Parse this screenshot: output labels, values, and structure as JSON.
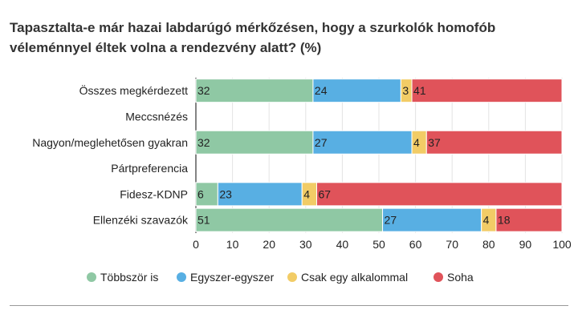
{
  "title": "Tapasztalta-e már hazai labdarúgó mérkőzésen, hogy a szurkolók homofób véleménnyel éltek volna a rendezvény alatt? (%)",
  "chart_data": {
    "type": "bar",
    "orientation": "horizontal",
    "stacked": true,
    "categories": [
      "Összes megkérdezett",
      "Meccsnézés",
      "Nagyon/meglehetősen gyakran",
      "Pártpreferencia",
      "Fidesz-KDNP",
      "Ellenzéki szavazók"
    ],
    "series": [
      {
        "name": "Többször is",
        "color": "#8fc8a4",
        "values": [
          32,
          null,
          32,
          null,
          6,
          51
        ]
      },
      {
        "name": "Egyszer-egyszer",
        "color": "#58afe3",
        "values": [
          24,
          null,
          27,
          null,
          23,
          27
        ]
      },
      {
        "name": "Csak egy alkalommal",
        "color": "#f2cc66",
        "values": [
          3,
          null,
          4,
          null,
          4,
          4
        ]
      },
      {
        "name": "Soha",
        "color": "#e0535a",
        "values": [
          41,
          null,
          37,
          null,
          67,
          18
        ]
      }
    ],
    "xlim": [
      0,
      100
    ],
    "xticks": [
      0,
      10,
      20,
      30,
      40,
      50,
      60,
      70,
      80,
      90,
      100
    ],
    "grid": true,
    "legend_position": "bottom"
  }
}
